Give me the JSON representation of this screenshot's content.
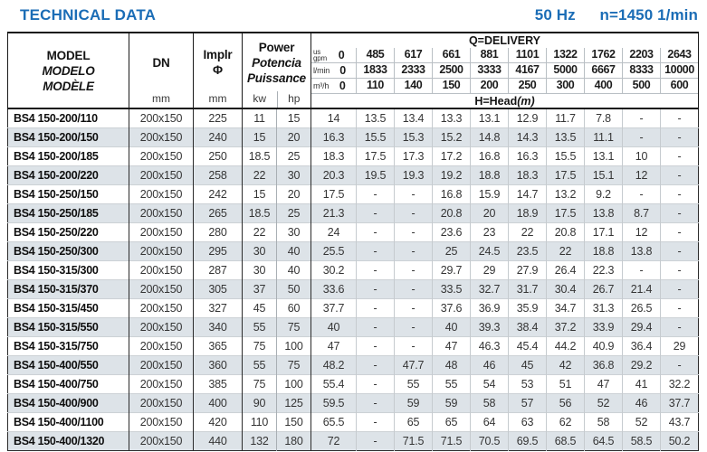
{
  "page": {
    "title": "TECHNICAL DATA",
    "frequency": "50 Hz",
    "speed": "n=1450 1/min"
  },
  "colors": {
    "accent_blue": "#1b6db6",
    "row_shade": "#dde3e8",
    "border_dark": "#1a1a1a",
    "border_light": "#b9bfc4"
  },
  "table": {
    "header": {
      "model_lines": [
        "MODEL",
        "MODELO",
        "MODÈLE"
      ],
      "dn_label": "DN",
      "implr_label": "Implr",
      "implr_symbol": "Φ",
      "power_lines": [
        "Power",
        "Potencia",
        "Puissance"
      ],
      "unit_mm": "mm",
      "unit_kw": "kw",
      "unit_hp": "hp",
      "delivery_title": "Q=DELIVERY",
      "head_title": "H=Head",
      "head_unit": "(m)",
      "flow_rows": [
        {
          "unit_lines": [
            "us",
            "gpm"
          ],
          "values": [
            "0",
            "485",
            "617",
            "661",
            "881",
            "1101",
            "1322",
            "1762",
            "2203",
            "2643"
          ]
        },
        {
          "unit_lines": [
            "l/min"
          ],
          "values": [
            "0",
            "1833",
            "2333",
            "2500",
            "3333",
            "4167",
            "5000",
            "6667",
            "8333",
            "10000"
          ]
        },
        {
          "unit_lines": [
            "m³/h"
          ],
          "values": [
            "0",
            "110",
            "140",
            "150",
            "200",
            "250",
            "300",
            "400",
            "500",
            "600"
          ]
        }
      ]
    },
    "rows": [
      {
        "model": "BS4 150-200/110",
        "dn": "200x150",
        "implr": "225",
        "kw": "11",
        "hp": "15",
        "heads": [
          "14",
          "13.5",
          "13.4",
          "13.3",
          "13.1",
          "12.9",
          "11.7",
          "7.8",
          "-",
          "-"
        ]
      },
      {
        "model": "BS4 150-200/150",
        "dn": "200x150",
        "implr": "240",
        "kw": "15",
        "hp": "20",
        "heads": [
          "16.3",
          "15.5",
          "15.3",
          "15.2",
          "14.8",
          "14.3",
          "13.5",
          "11.1",
          "-",
          "-"
        ]
      },
      {
        "model": "BS4 150-200/185",
        "dn": "200x150",
        "implr": "250",
        "kw": "18.5",
        "hp": "25",
        "heads": [
          "18.3",
          "17.5",
          "17.3",
          "17.2",
          "16.8",
          "16.3",
          "15.5",
          "13.1",
          "10",
          "-"
        ]
      },
      {
        "model": "BS4 150-200/220",
        "dn": "200x150",
        "implr": "258",
        "kw": "22",
        "hp": "30",
        "heads": [
          "20.3",
          "19.5",
          "19.3",
          "19.2",
          "18.8",
          "18.3",
          "17.5",
          "15.1",
          "12",
          "-"
        ]
      },
      {
        "model": "BS4 150-250/150",
        "dn": "200x150",
        "implr": "242",
        "kw": "15",
        "hp": "20",
        "heads": [
          "17.5",
          "-",
          "-",
          "16.8",
          "15.9",
          "14.7",
          "13.2",
          "9.2",
          "-",
          "-"
        ]
      },
      {
        "model": "BS4 150-250/185",
        "dn": "200x150",
        "implr": "265",
        "kw": "18.5",
        "hp": "25",
        "heads": [
          "21.3",
          "-",
          "-",
          "20.8",
          "20",
          "18.9",
          "17.5",
          "13.8",
          "8.7",
          "-"
        ]
      },
      {
        "model": "BS4 150-250/220",
        "dn": "200x150",
        "implr": "280",
        "kw": "22",
        "hp": "30",
        "heads": [
          "24",
          "-",
          "-",
          "23.6",
          "23",
          "22",
          "20.8",
          "17.1",
          "12",
          "-"
        ]
      },
      {
        "model": "BS4 150-250/300",
        "dn": "200x150",
        "implr": "295",
        "kw": "30",
        "hp": "40",
        "heads": [
          "25.5",
          "-",
          "-",
          "25",
          "24.5",
          "23.5",
          "22",
          "18.8",
          "13.8",
          "-"
        ]
      },
      {
        "model": "BS4 150-315/300",
        "dn": "200x150",
        "implr": "287",
        "kw": "30",
        "hp": "40",
        "heads": [
          "30.2",
          "-",
          "-",
          "29.7",
          "29",
          "27.9",
          "26.4",
          "22.3",
          "-",
          "-"
        ]
      },
      {
        "model": "BS4 150-315/370",
        "dn": "200x150",
        "implr": "305",
        "kw": "37",
        "hp": "50",
        "heads": [
          "33.6",
          "-",
          "-",
          "33.5",
          "32.7",
          "31.7",
          "30.4",
          "26.7",
          "21.4",
          "-"
        ]
      },
      {
        "model": "BS4 150-315/450",
        "dn": "200x150",
        "implr": "327",
        "kw": "45",
        "hp": "60",
        "heads": [
          "37.7",
          "-",
          "-",
          "37.6",
          "36.9",
          "35.9",
          "34.7",
          "31.3",
          "26.5",
          "-"
        ]
      },
      {
        "model": "BS4 150-315/550",
        "dn": "200x150",
        "implr": "340",
        "kw": "55",
        "hp": "75",
        "heads": [
          "40",
          "-",
          "-",
          "40",
          "39.3",
          "38.4",
          "37.2",
          "33.9",
          "29.4",
          "-"
        ]
      },
      {
        "model": "BS4 150-315/750",
        "dn": "200x150",
        "implr": "365",
        "kw": "75",
        "hp": "100",
        "heads": [
          "47",
          "-",
          "-",
          "47",
          "46.3",
          "45.4",
          "44.2",
          "40.9",
          "36.4",
          "29"
        ]
      },
      {
        "model": "BS4 150-400/550",
        "dn": "200x150",
        "implr": "360",
        "kw": "55",
        "hp": "75",
        "heads": [
          "48.2",
          "-",
          "47.7",
          "48",
          "46",
          "45",
          "42",
          "36.8",
          "29.2",
          "-"
        ]
      },
      {
        "model": "BS4 150-400/750",
        "dn": "200x150",
        "implr": "385",
        "kw": "75",
        "hp": "100",
        "heads": [
          "55.4",
          "-",
          "55",
          "55",
          "54",
          "53",
          "51",
          "47",
          "41",
          "32.2"
        ]
      },
      {
        "model": "BS4 150-400/900",
        "dn": "200x150",
        "implr": "400",
        "kw": "90",
        "hp": "125",
        "heads": [
          "59.5",
          "-",
          "59",
          "59",
          "58",
          "57",
          "56",
          "52",
          "46",
          "37.7"
        ]
      },
      {
        "model": "BS4 150-400/1100",
        "dn": "200x150",
        "implr": "420",
        "kw": "110",
        "hp": "150",
        "heads": [
          "65.5",
          "-",
          "65",
          "65",
          "64",
          "63",
          "62",
          "58",
          "52",
          "43.7"
        ]
      },
      {
        "model": "BS4 150-400/1320",
        "dn": "200x150",
        "implr": "440",
        "kw": "132",
        "hp": "180",
        "heads": [
          "72",
          "-",
          "71.5",
          "71.5",
          "70.5",
          "69.5",
          "68.5",
          "64.5",
          "58.5",
          "50.2"
        ]
      }
    ]
  }
}
